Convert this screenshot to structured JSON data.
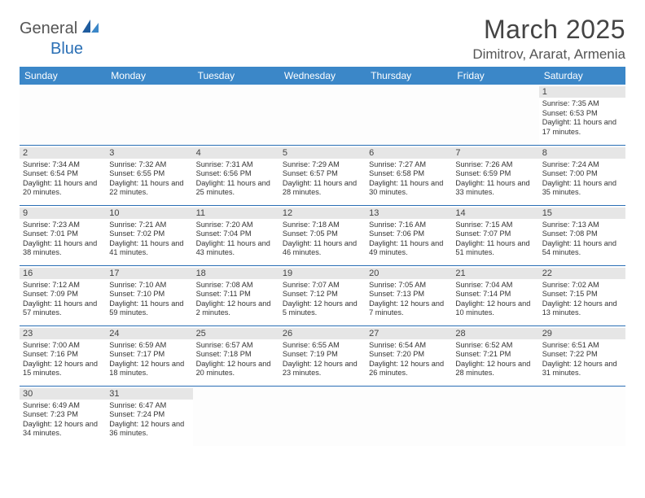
{
  "brand": {
    "part1": "General",
    "part2": "Blue"
  },
  "title": "March 2025",
  "location": "Dimitrov, Ararat, Armenia",
  "colors": {
    "header_bg": "#3b87c8",
    "border": "#2a6fb5",
    "daynum_bg": "#e6e6e6",
    "text": "#333333"
  },
  "weekdays": [
    "Sunday",
    "Monday",
    "Tuesday",
    "Wednesday",
    "Thursday",
    "Friday",
    "Saturday"
  ],
  "weeks": [
    [
      {
        "n": "",
        "sr": "",
        "ss": "",
        "dl": ""
      },
      {
        "n": "",
        "sr": "",
        "ss": "",
        "dl": ""
      },
      {
        "n": "",
        "sr": "",
        "ss": "",
        "dl": ""
      },
      {
        "n": "",
        "sr": "",
        "ss": "",
        "dl": ""
      },
      {
        "n": "",
        "sr": "",
        "ss": "",
        "dl": ""
      },
      {
        "n": "",
        "sr": "",
        "ss": "",
        "dl": ""
      },
      {
        "n": "1",
        "sr": "Sunrise: 7:35 AM",
        "ss": "Sunset: 6:53 PM",
        "dl": "Daylight: 11 hours and 17 minutes."
      }
    ],
    [
      {
        "n": "2",
        "sr": "Sunrise: 7:34 AM",
        "ss": "Sunset: 6:54 PM",
        "dl": "Daylight: 11 hours and 20 minutes."
      },
      {
        "n": "3",
        "sr": "Sunrise: 7:32 AM",
        "ss": "Sunset: 6:55 PM",
        "dl": "Daylight: 11 hours and 22 minutes."
      },
      {
        "n": "4",
        "sr": "Sunrise: 7:31 AM",
        "ss": "Sunset: 6:56 PM",
        "dl": "Daylight: 11 hours and 25 minutes."
      },
      {
        "n": "5",
        "sr": "Sunrise: 7:29 AM",
        "ss": "Sunset: 6:57 PM",
        "dl": "Daylight: 11 hours and 28 minutes."
      },
      {
        "n": "6",
        "sr": "Sunrise: 7:27 AM",
        "ss": "Sunset: 6:58 PM",
        "dl": "Daylight: 11 hours and 30 minutes."
      },
      {
        "n": "7",
        "sr": "Sunrise: 7:26 AM",
        "ss": "Sunset: 6:59 PM",
        "dl": "Daylight: 11 hours and 33 minutes."
      },
      {
        "n": "8",
        "sr": "Sunrise: 7:24 AM",
        "ss": "Sunset: 7:00 PM",
        "dl": "Daylight: 11 hours and 35 minutes."
      }
    ],
    [
      {
        "n": "9",
        "sr": "Sunrise: 7:23 AM",
        "ss": "Sunset: 7:01 PM",
        "dl": "Daylight: 11 hours and 38 minutes."
      },
      {
        "n": "10",
        "sr": "Sunrise: 7:21 AM",
        "ss": "Sunset: 7:02 PM",
        "dl": "Daylight: 11 hours and 41 minutes."
      },
      {
        "n": "11",
        "sr": "Sunrise: 7:20 AM",
        "ss": "Sunset: 7:04 PM",
        "dl": "Daylight: 11 hours and 43 minutes."
      },
      {
        "n": "12",
        "sr": "Sunrise: 7:18 AM",
        "ss": "Sunset: 7:05 PM",
        "dl": "Daylight: 11 hours and 46 minutes."
      },
      {
        "n": "13",
        "sr": "Sunrise: 7:16 AM",
        "ss": "Sunset: 7:06 PM",
        "dl": "Daylight: 11 hours and 49 minutes."
      },
      {
        "n": "14",
        "sr": "Sunrise: 7:15 AM",
        "ss": "Sunset: 7:07 PM",
        "dl": "Daylight: 11 hours and 51 minutes."
      },
      {
        "n": "15",
        "sr": "Sunrise: 7:13 AM",
        "ss": "Sunset: 7:08 PM",
        "dl": "Daylight: 11 hours and 54 minutes."
      }
    ],
    [
      {
        "n": "16",
        "sr": "Sunrise: 7:12 AM",
        "ss": "Sunset: 7:09 PM",
        "dl": "Daylight: 11 hours and 57 minutes."
      },
      {
        "n": "17",
        "sr": "Sunrise: 7:10 AM",
        "ss": "Sunset: 7:10 PM",
        "dl": "Daylight: 11 hours and 59 minutes."
      },
      {
        "n": "18",
        "sr": "Sunrise: 7:08 AM",
        "ss": "Sunset: 7:11 PM",
        "dl": "Daylight: 12 hours and 2 minutes."
      },
      {
        "n": "19",
        "sr": "Sunrise: 7:07 AM",
        "ss": "Sunset: 7:12 PM",
        "dl": "Daylight: 12 hours and 5 minutes."
      },
      {
        "n": "20",
        "sr": "Sunrise: 7:05 AM",
        "ss": "Sunset: 7:13 PM",
        "dl": "Daylight: 12 hours and 7 minutes."
      },
      {
        "n": "21",
        "sr": "Sunrise: 7:04 AM",
        "ss": "Sunset: 7:14 PM",
        "dl": "Daylight: 12 hours and 10 minutes."
      },
      {
        "n": "22",
        "sr": "Sunrise: 7:02 AM",
        "ss": "Sunset: 7:15 PM",
        "dl": "Daylight: 12 hours and 13 minutes."
      }
    ],
    [
      {
        "n": "23",
        "sr": "Sunrise: 7:00 AM",
        "ss": "Sunset: 7:16 PM",
        "dl": "Daylight: 12 hours and 15 minutes."
      },
      {
        "n": "24",
        "sr": "Sunrise: 6:59 AM",
        "ss": "Sunset: 7:17 PM",
        "dl": "Daylight: 12 hours and 18 minutes."
      },
      {
        "n": "25",
        "sr": "Sunrise: 6:57 AM",
        "ss": "Sunset: 7:18 PM",
        "dl": "Daylight: 12 hours and 20 minutes."
      },
      {
        "n": "26",
        "sr": "Sunrise: 6:55 AM",
        "ss": "Sunset: 7:19 PM",
        "dl": "Daylight: 12 hours and 23 minutes."
      },
      {
        "n": "27",
        "sr": "Sunrise: 6:54 AM",
        "ss": "Sunset: 7:20 PM",
        "dl": "Daylight: 12 hours and 26 minutes."
      },
      {
        "n": "28",
        "sr": "Sunrise: 6:52 AM",
        "ss": "Sunset: 7:21 PM",
        "dl": "Daylight: 12 hours and 28 minutes."
      },
      {
        "n": "29",
        "sr": "Sunrise: 6:51 AM",
        "ss": "Sunset: 7:22 PM",
        "dl": "Daylight: 12 hours and 31 minutes."
      }
    ],
    [
      {
        "n": "30",
        "sr": "Sunrise: 6:49 AM",
        "ss": "Sunset: 7:23 PM",
        "dl": "Daylight: 12 hours and 34 minutes."
      },
      {
        "n": "31",
        "sr": "Sunrise: 6:47 AM",
        "ss": "Sunset: 7:24 PM",
        "dl": "Daylight: 12 hours and 36 minutes."
      },
      {
        "n": "",
        "sr": "",
        "ss": "",
        "dl": ""
      },
      {
        "n": "",
        "sr": "",
        "ss": "",
        "dl": ""
      },
      {
        "n": "",
        "sr": "",
        "ss": "",
        "dl": ""
      },
      {
        "n": "",
        "sr": "",
        "ss": "",
        "dl": ""
      },
      {
        "n": "",
        "sr": "",
        "ss": "",
        "dl": ""
      }
    ]
  ]
}
